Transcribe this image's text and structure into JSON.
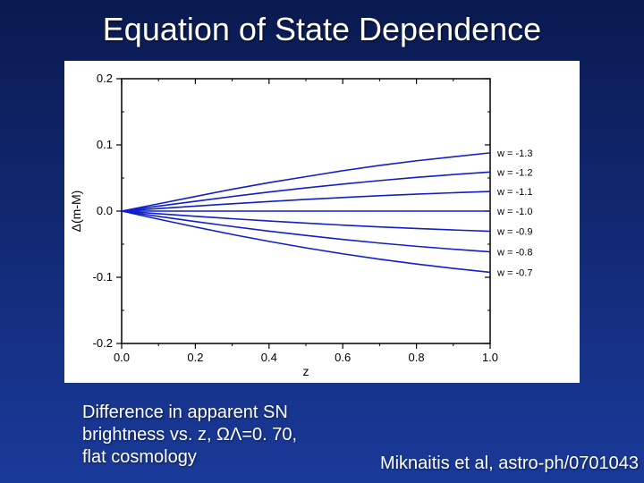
{
  "slide": {
    "title": "Equation of State Dependence",
    "caption_line1": "Difference in apparent SN",
    "caption_line2": "brightness vs. z, ΩΛ=0. 70,",
    "caption_line3": "flat cosmology",
    "citation": "Miknaitis et al, astro-ph/0701043",
    "background_gradient_top": "#0a1a50",
    "background_gradient_bottom": "#1a3a9a",
    "title_fontsize": 36,
    "caption_fontsize": 20
  },
  "chart": {
    "type": "line",
    "background_color": "#ffffff",
    "axis_color": "#000000",
    "series_color": "#1020c8",
    "line_width": 1.6,
    "tick_font_size": 13,
    "label_font_size": 14,
    "series_label_font_size": 11,
    "xlabel": "z",
    "ylabel": "Δ(m-M)",
    "xlim": [
      0.0,
      1.0
    ],
    "ylim": [
      -0.2,
      0.2
    ],
    "xtick_step": 0.2,
    "ytick_step": 0.1,
    "xticks": [
      0.0,
      0.2,
      0.4,
      0.6,
      0.8,
      1.0
    ],
    "yticks": [
      -0.2,
      -0.1,
      0.0,
      0.1,
      0.2
    ],
    "series": [
      {
        "label": "w = -1.3",
        "x": [
          0.0,
          0.1,
          0.2,
          0.3,
          0.4,
          0.5,
          0.6,
          0.7,
          0.8,
          0.9,
          1.0
        ],
        "y": [
          0.0,
          0.011,
          0.022,
          0.033,
          0.043,
          0.052,
          0.061,
          0.069,
          0.076,
          0.082,
          0.088
        ]
      },
      {
        "label": "w = -1.2",
        "x": [
          0.0,
          0.1,
          0.2,
          0.3,
          0.4,
          0.5,
          0.6,
          0.7,
          0.8,
          0.9,
          1.0
        ],
        "y": [
          0.0,
          0.0075,
          0.0148,
          0.022,
          0.0288,
          0.035,
          0.0408,
          0.0461,
          0.0509,
          0.0552,
          0.059
        ]
      },
      {
        "label": "w = -1.1",
        "x": [
          0.0,
          0.1,
          0.2,
          0.3,
          0.4,
          0.5,
          0.6,
          0.7,
          0.8,
          0.9,
          1.0
        ],
        "y": [
          0.0,
          0.0038,
          0.0075,
          0.0111,
          0.0145,
          0.0176,
          0.0205,
          0.0232,
          0.0256,
          0.0277,
          0.0296
        ]
      },
      {
        "label": "w = -1.0",
        "x": [
          0.0,
          0.1,
          0.2,
          0.3,
          0.4,
          0.5,
          0.6,
          0.7,
          0.8,
          0.9,
          1.0
        ],
        "y": [
          0.0,
          0.0,
          0.0,
          0.0,
          0.0,
          0.0,
          0.0,
          0.0,
          0.0,
          0.0,
          0.0
        ]
      },
      {
        "label": "w = -0.9",
        "x": [
          0.0,
          0.1,
          0.2,
          0.3,
          0.4,
          0.5,
          0.6,
          0.7,
          0.8,
          0.9,
          1.0
        ],
        "y": [
          0.0,
          -0.004,
          -0.0078,
          -0.0115,
          -0.015,
          -0.0182,
          -0.0212,
          -0.0239,
          -0.0263,
          -0.0285,
          -0.0305
        ]
      },
      {
        "label": "w = -0.8",
        "x": [
          0.0,
          0.1,
          0.2,
          0.3,
          0.4,
          0.5,
          0.6,
          0.7,
          0.8,
          0.9,
          1.0
        ],
        "y": [
          0.0,
          -0.008,
          -0.0158,
          -0.0233,
          -0.0303,
          -0.0368,
          -0.0428,
          -0.0483,
          -0.0532,
          -0.0576,
          -0.0616
        ]
      },
      {
        "label": "w = -0.7",
        "x": [
          0.0,
          0.1,
          0.2,
          0.3,
          0.4,
          0.5,
          0.6,
          0.7,
          0.8,
          0.9,
          1.0
        ],
        "y": [
          0.0,
          -0.0122,
          -0.024,
          -0.0353,
          -0.0458,
          -0.0556,
          -0.0645,
          -0.0727,
          -0.08,
          -0.0866,
          -0.0925
        ]
      }
    ]
  }
}
